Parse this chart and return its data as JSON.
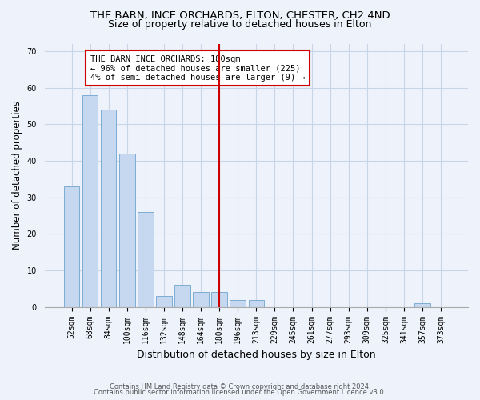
{
  "title": "THE BARN, INCE ORCHARDS, ELTON, CHESTER, CH2 4ND",
  "subtitle": "Size of property relative to detached houses in Elton",
  "xlabel": "Distribution of detached houses by size in Elton",
  "ylabel": "Number of detached properties",
  "categories": [
    "52sqm",
    "68sqm",
    "84sqm",
    "100sqm",
    "116sqm",
    "132sqm",
    "148sqm",
    "164sqm",
    "180sqm",
    "196sqm",
    "213sqm",
    "229sqm",
    "245sqm",
    "261sqm",
    "277sqm",
    "293sqm",
    "309sqm",
    "325sqm",
    "341sqm",
    "357sqm",
    "373sqm"
  ],
  "values": [
    33,
    58,
    54,
    42,
    26,
    3,
    6,
    4,
    4,
    2,
    2,
    0,
    0,
    0,
    0,
    0,
    0,
    0,
    0,
    1,
    0
  ],
  "bar_color": "#c5d8f0",
  "bar_edge_color": "#7dadd4",
  "highlight_index": 8,
  "highlight_line_color": "#cc0000",
  "annotation_text": "THE BARN INCE ORCHARDS: 180sqm\n← 96% of detached houses are smaller (225)\n4% of semi-detached houses are larger (9) →",
  "annotation_box_color": "#ffffff",
  "annotation_box_edge": "#cc0000",
  "ylim": [
    0,
    72
  ],
  "yticks": [
    0,
    10,
    20,
    30,
    40,
    50,
    60,
    70
  ],
  "footer_line1": "Contains HM Land Registry data © Crown copyright and database right 2024.",
  "footer_line2": "Contains public sector information licensed under the Open Government Licence v3.0.",
  "bg_color": "#eef2fa",
  "plot_bg_color": "#eef2fa",
  "grid_color": "#c8d4e8",
  "title_fontsize": 9.5,
  "subtitle_fontsize": 9,
  "tick_fontsize": 7,
  "ylabel_fontsize": 8.5,
  "xlabel_fontsize": 9,
  "annotation_fontsize": 7.5,
  "footer_fontsize": 6
}
